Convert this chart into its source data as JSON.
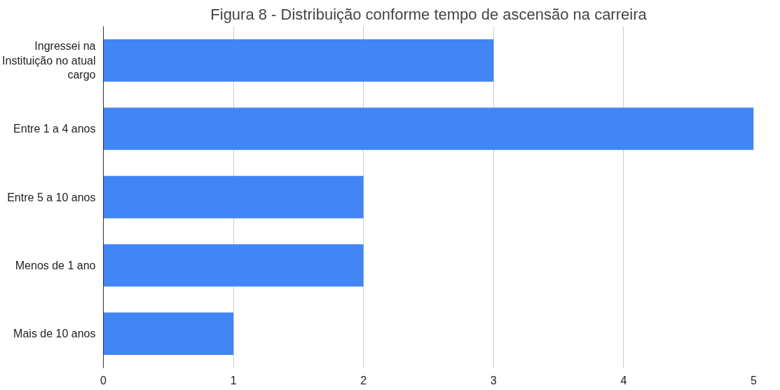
{
  "chart_data": {
    "type": "bar",
    "orientation": "horizontal",
    "title": "Figura 8 - Distribuição conforme tempo de ascensão na carreira",
    "categories": [
      "Ingressei na Instituição no atual cargo",
      "Entre 1 a 4 anos",
      "Entre 5 a 10 anos",
      "Menos de 1 ano",
      "Mais de 10 anos"
    ],
    "values": [
      3,
      5,
      2,
      2,
      1
    ],
    "color": "#4285f4",
    "xlim": [
      0,
      5
    ],
    "xticks": [
      0,
      1,
      2,
      3,
      4,
      5
    ],
    "grid": "x"
  }
}
